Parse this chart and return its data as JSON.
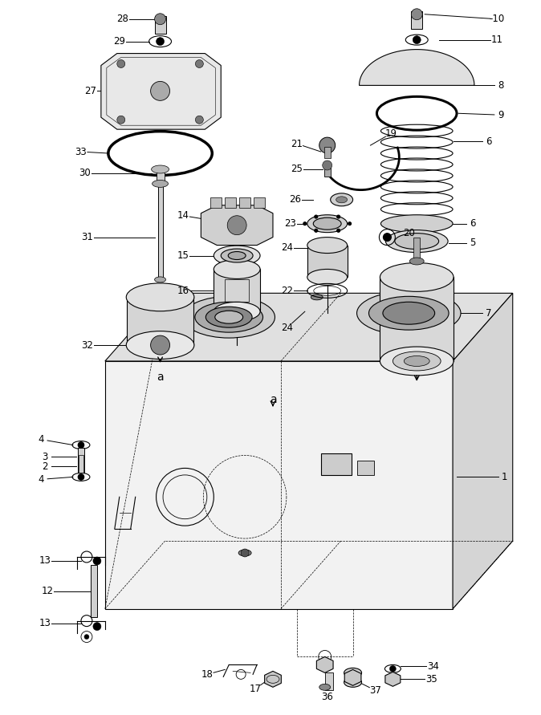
{
  "bg_color": "#ffffff",
  "line_color": "#000000",
  "lw": 0.8
}
